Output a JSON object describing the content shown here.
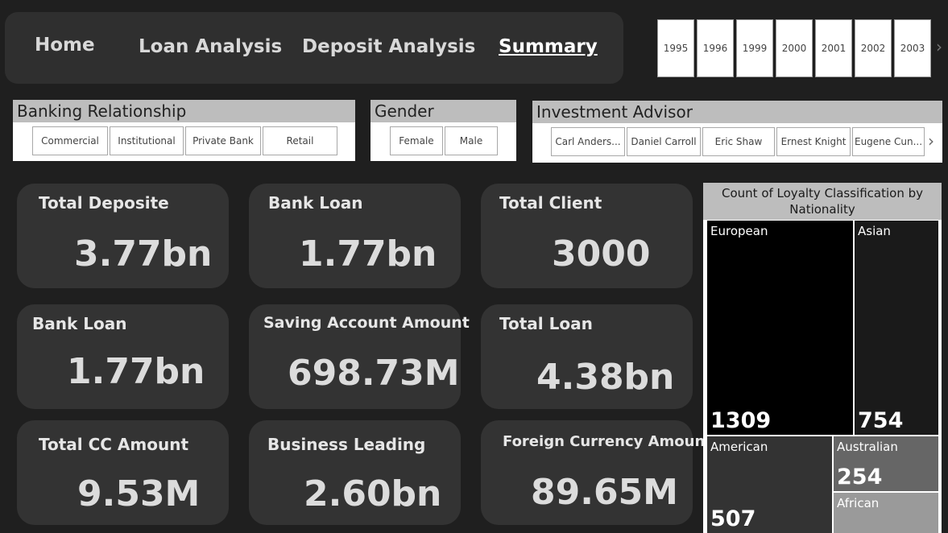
{
  "nav": {
    "items": [
      {
        "label": "Home"
      },
      {
        "label": "Loan Analysis"
      },
      {
        "label": "Deposit Analysis"
      },
      {
        "label": "Summary",
        "active": true
      }
    ]
  },
  "years": [
    "1995",
    "1996",
    "1999",
    "2000",
    "2001",
    "2002",
    "2003"
  ],
  "slicers": {
    "banking_relationship": {
      "title": "Banking Relationship",
      "options": [
        "Commercial",
        "Institutional",
        "Private Bank",
        "Retail"
      ]
    },
    "gender": {
      "title": "Gender",
      "options": [
        "Female",
        "Male"
      ]
    },
    "investment_advisor": {
      "title": "Investment Advisor",
      "options": [
        "Carl Anders...",
        "Daniel Carroll",
        "Eric Shaw",
        "Ernest Knight",
        "Eugene Cun..."
      ]
    }
  },
  "cards": [
    {
      "title": "Total Deposite",
      "value": "3.77bn"
    },
    {
      "title": "Bank Loan",
      "value": "1.77bn"
    },
    {
      "title": "Total Client",
      "value": "3000"
    },
    {
      "title": "Bank Loan",
      "value": "1.77bn"
    },
    {
      "title": "Saving Account Amount",
      "value": "698.73M"
    },
    {
      "title": "Total Loan",
      "value": "4.38bn"
    },
    {
      "title": "Total CC Amount",
      "value": "9.53M"
    },
    {
      "title": "Business Leading",
      "value": "2.60bn"
    },
    {
      "title": "Foreign Currency Amount",
      "value": "89.65M"
    }
  ],
  "chart_data": {
    "type": "treemap",
    "title": "Count of Loyalty Classification by Nationality",
    "categories": [
      "European",
      "Asian",
      "American",
      "Australian",
      "African"
    ],
    "values": [
      1309,
      754,
      507,
      254,
      null
    ],
    "value_labels": [
      "1309",
      "754",
      "507",
      "254",
      ""
    ],
    "colors": [
      "#000000",
      "#1a1a1a",
      "#333333",
      "#666666",
      "#9a9a9a"
    ]
  },
  "icons": {
    "years_next": "chevron-right-icon",
    "advisor_next": "chevron-right-icon"
  }
}
